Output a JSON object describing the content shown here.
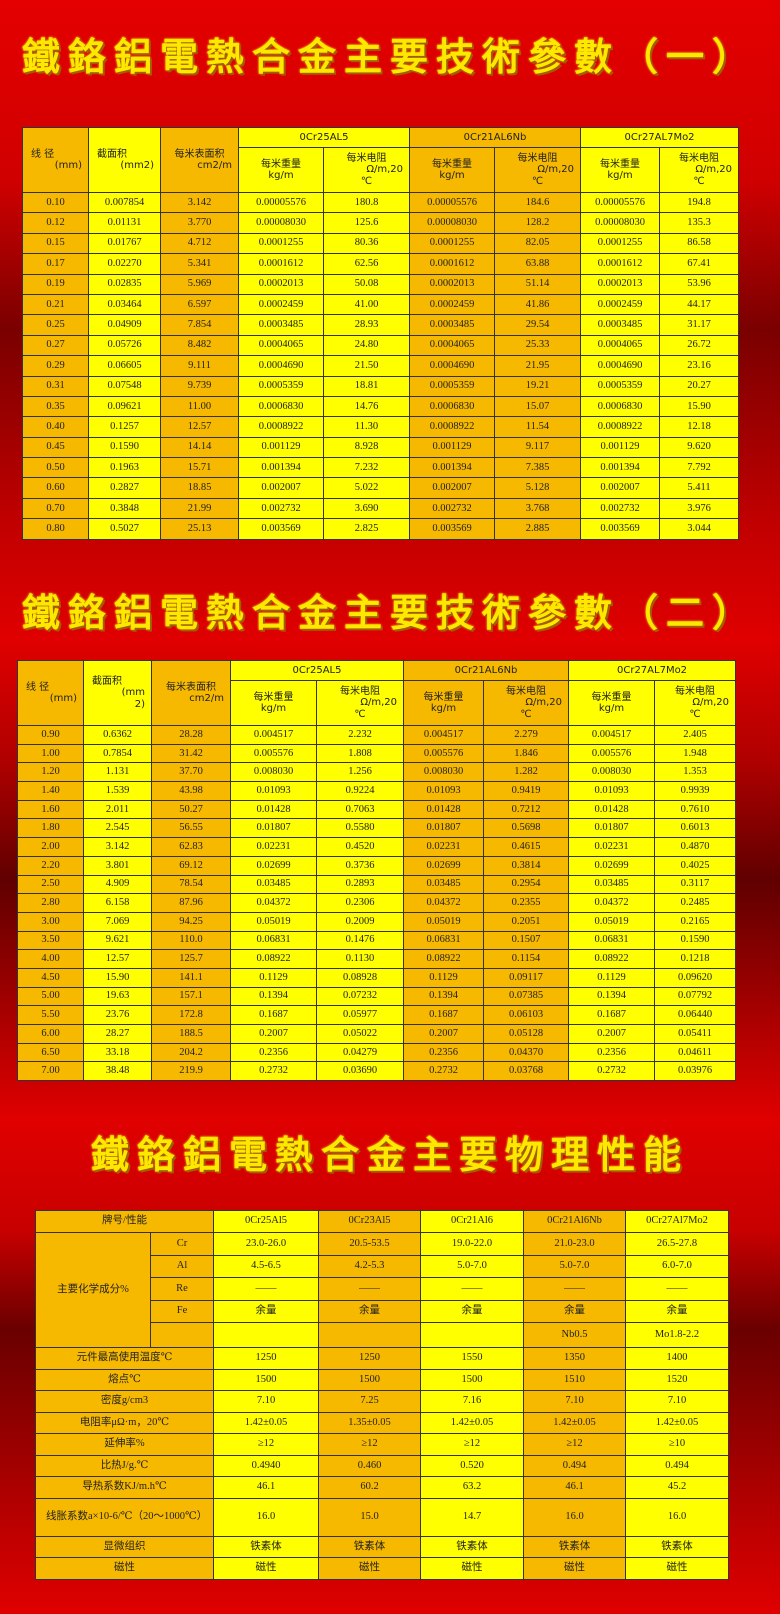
{
  "titles": {
    "t1": "鐵鉻鋁電熱合金主要技術參數（一）",
    "t2": "鐵鉻鋁電熱合金主要技術參數（二）",
    "t3": "鐵鉻鋁電熱合金主要物理性能"
  },
  "colors": {
    "orange": "#f7b900",
    "yellow": "#ffff00",
    "background": "#d00000",
    "title": "#ffe800"
  },
  "params_header": {
    "diameter": "线 径",
    "diameter_unit": "(mm)",
    "area": "截面积",
    "area_unit": "(mm2)",
    "surface": "每米表面积",
    "surface_unit": "cm2/m",
    "alloys": [
      "0Cr25AL5",
      "0Cr21AL6Nb",
      "0Cr27AL7Mo2"
    ],
    "weight": "每米重量",
    "weight_unit": "kg/m",
    "resistance": "每米电阻",
    "resistance_unit": "Ω/m,20",
    "resistance_unit2": "℃"
  },
  "table1": {
    "rows": [
      [
        "0.10",
        "0.007854",
        "3.142",
        "0.00005576",
        "180.8",
        "0.00005576",
        "184.6",
        "0.00005576",
        "194.8"
      ],
      [
        "0.12",
        "0.01131",
        "3.770",
        "0.00008030",
        "125.6",
        "0.00008030",
        "128.2",
        "0.00008030",
        "135.3"
      ],
      [
        "0.15",
        "0.01767",
        "4.712",
        "0.0001255",
        "80.36",
        "0.0001255",
        "82.05",
        "0.0001255",
        "86.58"
      ],
      [
        "0.17",
        "0.02270",
        "5.341",
        "0.0001612",
        "62.56",
        "0.0001612",
        "63.88",
        "0.0001612",
        "67.41"
      ],
      [
        "0.19",
        "0.02835",
        "5.969",
        "0.0002013",
        "50.08",
        "0.0002013",
        "51.14",
        "0.0002013",
        "53.96"
      ],
      [
        "0.21",
        "0.03464",
        "6.597",
        "0.0002459",
        "41.00",
        "0.0002459",
        "41.86",
        "0.0002459",
        "44.17"
      ],
      [
        "0.25",
        "0.04909",
        "7.854",
        "0.0003485",
        "28.93",
        "0.0003485",
        "29.54",
        "0.0003485",
        "31.17"
      ],
      [
        "0.27",
        "0.05726",
        "8.482",
        "0.0004065",
        "24.80",
        "0.0004065",
        "25.33",
        "0.0004065",
        "26.72"
      ],
      [
        "0.29",
        "0.06605",
        "9.111",
        "0.0004690",
        "21.50",
        "0.0004690",
        "21.95",
        "0.0004690",
        "23.16"
      ],
      [
        "0.31",
        "0.07548",
        "9.739",
        "0.0005359",
        "18.81",
        "0.0005359",
        "19.21",
        "0.0005359",
        "20.27"
      ],
      [
        "0.35",
        "0.09621",
        "11.00",
        "0.0006830",
        "14.76",
        "0.0006830",
        "15.07",
        "0.0006830",
        "15.90"
      ],
      [
        "0.40",
        "0.1257",
        "12.57",
        "0.0008922",
        "11.30",
        "0.0008922",
        "11.54",
        "0.0008922",
        "12.18"
      ],
      [
        "0.45",
        "0.1590",
        "14.14",
        "0.001129",
        "8.928",
        "0.001129",
        "9.117",
        "0.001129",
        "9.620"
      ],
      [
        "0.50",
        "0.1963",
        "15.71",
        "0.001394",
        "7.232",
        "0.001394",
        "7.385",
        "0.001394",
        "7.792"
      ],
      [
        "0.60",
        "0.2827",
        "18.85",
        "0.002007",
        "5.022",
        "0.002007",
        "5.128",
        "0.002007",
        "5.411"
      ],
      [
        "0.70",
        "0.3848",
        "21.99",
        "0.002732",
        "3.690",
        "0.002732",
        "3.768",
        "0.002732",
        "3.976"
      ],
      [
        "0.80",
        "0.5027",
        "25.13",
        "0.003569",
        "2.825",
        "0.003569",
        "2.885",
        "0.003569",
        "3.044"
      ]
    ]
  },
  "table2": {
    "area_unit_a": "(mm",
    "area_unit_b": "2)",
    "rows": [
      [
        "0.90",
        "0.6362",
        "28.28",
        "0.004517",
        "2.232",
        "0.004517",
        "2.279",
        "0.004517",
        "2.405"
      ],
      [
        "1.00",
        "0.7854",
        "31.42",
        "0.005576",
        "1.808",
        "0.005576",
        "1.846",
        "0.005576",
        "1.948"
      ],
      [
        "1.20",
        "1.131",
        "37.70",
        "0.008030",
        "1.256",
        "0.008030",
        "1.282",
        "0.008030",
        "1.353"
      ],
      [
        "1.40",
        "1.539",
        "43.98",
        "0.01093",
        "0.9224",
        "0.01093",
        "0.9419",
        "0.01093",
        "0.9939"
      ],
      [
        "1.60",
        "2.011",
        "50.27",
        "0.01428",
        "0.7063",
        "0.01428",
        "0.7212",
        "0.01428",
        "0.7610"
      ],
      [
        "1.80",
        "2.545",
        "56.55",
        "0.01807",
        "0.5580",
        "0.01807",
        "0.5698",
        "0.01807",
        "0.6013"
      ],
      [
        "2.00",
        "3.142",
        "62.83",
        "0.02231",
        "0.4520",
        "0.02231",
        "0.4615",
        "0.02231",
        "0.4870"
      ],
      [
        "2.20",
        "3.801",
        "69.12",
        "0.02699",
        "0.3736",
        "0.02699",
        "0.3814",
        "0.02699",
        "0.4025"
      ],
      [
        "2.50",
        "4.909",
        "78.54",
        "0.03485",
        "0.2893",
        "0.03485",
        "0.2954",
        "0.03485",
        "0.3117"
      ],
      [
        "2.80",
        "6.158",
        "87.96",
        "0.04372",
        "0.2306",
        "0.04372",
        "0.2355",
        "0.04372",
        "0.2485"
      ],
      [
        "3.00",
        "7.069",
        "94.25",
        "0.05019",
        "0.2009",
        "0.05019",
        "0.2051",
        "0.05019",
        "0.2165"
      ],
      [
        "3.50",
        "9.621",
        "110.0",
        "0.06831",
        "0.1476",
        "0.06831",
        "0.1507",
        "0.06831",
        "0.1590"
      ],
      [
        "4.00",
        "12.57",
        "125.7",
        "0.08922",
        "0.1130",
        "0.08922",
        "0.1154",
        "0.08922",
        "0.1218"
      ],
      [
        "4.50",
        "15.90",
        "141.1",
        "0.1129",
        "0.08928",
        "0.1129",
        "0.09117",
        "0.1129",
        "0.09620"
      ],
      [
        "5.00",
        "19.63",
        "157.1",
        "0.1394",
        "0.07232",
        "0.1394",
        "0.07385",
        "0.1394",
        "0.07792"
      ],
      [
        "5.50",
        "23.76",
        "172.8",
        "0.1687",
        "0.05977",
        "0.1687",
        "0.06103",
        "0.1687",
        "0.06440"
      ],
      [
        "6.00",
        "28.27",
        "188.5",
        "0.2007",
        "0.05022",
        "0.2007",
        "0.05128",
        "0.2007",
        "0.05411"
      ],
      [
        "6.50",
        "33.18",
        "204.2",
        "0.2356",
        "0.04279",
        "0.2356",
        "0.04370",
        "0.2356",
        "0.04611"
      ],
      [
        "7.00",
        "38.48",
        "219.9",
        "0.2732",
        "0.03690",
        "0.2732",
        "0.03768",
        "0.2732",
        "0.03976"
      ]
    ]
  },
  "table3": {
    "header_label": "牌号/性能",
    "grades": [
      "0Cr25Al5",
      "0Cr23Al5",
      "0Cr21Al6",
      "0Cr21Al6Nb",
      "0Cr27Al7Mo2"
    ],
    "composition_label": "主要化学成分%",
    "composition": [
      {
        "el": "Cr",
        "values": [
          "23.0-26.0",
          "20.5-53.5",
          "19.0-22.0",
          "21.0-23.0",
          "26.5-27.8"
        ]
      },
      {
        "el": "Al",
        "values": [
          "4.5-6.5",
          "4.2-5.3",
          "5.0-7.0",
          "5.0-7.0",
          "6.0-7.0"
        ]
      },
      {
        "el": "Re",
        "values": [
          "——",
          "——",
          "——",
          "——",
          "——"
        ]
      },
      {
        "el": "Fe",
        "values": [
          "余量",
          "余量",
          "余量",
          "余量",
          "余量"
        ]
      },
      {
        "el": "",
        "values": [
          "",
          "",
          "",
          "Nb0.5",
          "Mo1.8-2.2"
        ]
      }
    ],
    "properties": [
      {
        "label": "元件最高使用温度℃",
        "values": [
          "1250",
          "1250",
          "1550",
          "1350",
          "1400"
        ]
      },
      {
        "label": "熔点℃",
        "values": [
          "1500",
          "1500",
          "1500",
          "1510",
          "1520"
        ]
      },
      {
        "label": "密度g/cm3",
        "values": [
          "7.10",
          "7.25",
          "7.16",
          "7.10",
          "7.10"
        ]
      },
      {
        "label": "电阻率μΩ·m，20℃",
        "values": [
          "1.42±0.05",
          "1.35±0.05",
          "1.42±0.05",
          "1.42±0.05",
          "1.42±0.05"
        ]
      },
      {
        "label": "延伸率%",
        "values": [
          "≥12",
          "≥12",
          "≥12",
          "≥12",
          "≥10"
        ]
      },
      {
        "label": "比热J/g.℃",
        "values": [
          "0.4940",
          "0.460",
          "0.520",
          "0.494",
          "0.494"
        ]
      },
      {
        "label": "导热系数KJ/m.h℃",
        "values": [
          "46.1",
          "60.2",
          "63.2",
          "46.1",
          "45.2"
        ]
      },
      {
        "label": "线胀系数a×10-6/℃（20～1000℃）",
        "values": [
          "16.0",
          "15.0",
          "14.7",
          "16.0",
          "16.0"
        ]
      },
      {
        "label": "显微组织",
        "values": [
          "铁素体",
          "铁素体",
          "铁素体",
          "铁素体",
          "铁素体"
        ]
      },
      {
        "label": "磁性",
        "values": [
          "磁性",
          "磁性",
          "磁性",
          "磁性",
          "磁性"
        ]
      }
    ]
  }
}
